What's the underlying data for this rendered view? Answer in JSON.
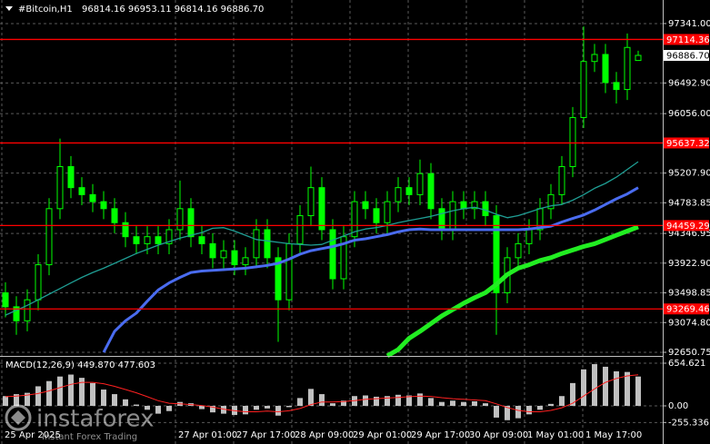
{
  "chart_data": [
    {
      "type": "candlestick",
      "title": "#Bitcoin,H1",
      "subtitle": "96814.16 96953.11 96814.16 96886.70",
      "watermark_brand": "instaforex",
      "watermark_tagline": "Instant Forex Trading",
      "color": "#00ff00",
      "grid": true,
      "xlim": [
        -0.5,
        60.25
      ],
      "ylim": [
        92599,
        97677
      ],
      "xticks": [
        {
          "value": -0.333,
          "label": "25 Apr 2025"
        },
        {
          "value": 15.583,
          "label": "27 Apr 01:00"
        },
        {
          "value": 20.917,
          "label": "27 Apr 17:00"
        },
        {
          "value": 26.25,
          "label": "28 Apr 09:00"
        },
        {
          "value": 31.583,
          "label": "29 Apr 01:00"
        },
        {
          "value": 36.917,
          "label": "29 Apr 17:00"
        },
        {
          "value": 42.25,
          "label": "30 Apr 09:00"
        },
        {
          "value": 47.583,
          "label": "1 May 01:00"
        },
        {
          "value": 52.917,
          "label": "1 May 17:00"
        }
      ],
      "yticks": [
        {
          "value": 97341,
          "label": "97341.00"
        },
        {
          "value": 96492.9,
          "label": "96492.90"
        },
        {
          "value": 96056,
          "label": "96056.00"
        },
        {
          "value": 95207.9,
          "label": "95207.90"
        },
        94783.85,
        94346.95,
        {
          "value": 93922.9,
          "label": "93922.90"
        },
        93498.85,
        {
          "value": 93074.8,
          "label": "93074.80"
        },
        92650.75
      ],
      "open": [
        93500,
        93300,
        93100,
        93400,
        93900,
        94700,
        95300,
        95000,
        94900,
        94800,
        94700,
        94500,
        94300,
        94200,
        94300,
        94200,
        94400,
        94700,
        94300,
        94200,
        94000,
        94100,
        93900,
        94000,
        94400,
        94000,
        93400,
        94200,
        94600,
        95000,
        94400,
        93700,
        94300,
        94800,
        94700,
        94500,
        94800,
        95000,
        94900,
        95200,
        94700,
        94400,
        94800,
        94700,
        94800,
        94600,
        93500,
        94000,
        94200,
        94400,
        94700,
        94900,
        95300,
        96000,
        96800,
        96900,
        96500,
        96400,
        96814.16
      ],
      "high": [
        93650,
        93450,
        93550,
        94050,
        94850,
        95700,
        95450,
        95150,
        95050,
        94950,
        94850,
        94650,
        94450,
        94450,
        94450,
        94550,
        95100,
        94850,
        94450,
        94350,
        94250,
        94250,
        94150,
        94550,
        94550,
        94150,
        94350,
        94750,
        95300,
        95150,
        94550,
        94450,
        94950,
        94950,
        94850,
        94950,
        95150,
        95150,
        95400,
        95350,
        94850,
        94950,
        94950,
        94950,
        94950,
        94750,
        94150,
        94350,
        94550,
        94850,
        95050,
        95450,
        96150,
        97300,
        97050,
        97050,
        96650,
        97200,
        96953.11
      ],
      "low": [
        93150,
        92900,
        92950,
        93250,
        93750,
        94550,
        94850,
        94750,
        94650,
        94550,
        94350,
        94150,
        94050,
        94050,
        94050,
        94050,
        94250,
        94150,
        94050,
        93850,
        93850,
        93750,
        93750,
        93850,
        93850,
        92800,
        93250,
        94050,
        94450,
        94250,
        93550,
        93550,
        94150,
        94550,
        94350,
        94350,
        94650,
        94750,
        94750,
        94550,
        94250,
        94250,
        94550,
        94550,
        94450,
        92900,
        93350,
        93850,
        94050,
        94250,
        94550,
        94750,
        95150,
        95850,
        96650,
        96350,
        96200,
        96250,
        96814.16
      ],
      "close": [
        93300,
        93100,
        93400,
        93900,
        94700,
        95300,
        95000,
        94900,
        94800,
        94700,
        94500,
        94300,
        94200,
        94300,
        94200,
        94400,
        94700,
        94300,
        94200,
        94000,
        94100,
        93900,
        94000,
        94400,
        94000,
        93400,
        94200,
        94600,
        95000,
        94400,
        93700,
        94300,
        94800,
        94700,
        94500,
        94800,
        95000,
        94900,
        95200,
        94700,
        94400,
        94800,
        94700,
        94800,
        94600,
        93500,
        94000,
        94200,
        94400,
        94700,
        94900,
        95300,
        96000,
        96800,
        96900,
        96500,
        96400,
        97000,
        96886.7
      ],
      "lines": [
        {
          "color": "#1f9e94",
          "width": 1.3,
          "values": [
            93180,
            93250,
            93320,
            93400,
            93480,
            93560,
            93640,
            93720,
            93790,
            93850,
            93920,
            93990,
            94060,
            94120,
            94180,
            94230,
            94280,
            94320,
            94360,
            94420,
            94430,
            94380,
            94320,
            94260,
            94240,
            94220,
            94200,
            94190,
            94180,
            94190,
            94250,
            94310,
            94370,
            94410,
            94430,
            94460,
            94500,
            94530,
            94560,
            94590,
            94630,
            94670,
            94700,
            94720,
            94680,
            94620,
            94570,
            94600,
            94650,
            94700,
            94740,
            94760,
            94820,
            94900,
            94990,
            95060,
            95150,
            95260,
            95370
          ]
        },
        {
          "color": "#4a6cf0",
          "width": 3,
          "values": [
            null,
            null,
            null,
            null,
            null,
            null,
            null,
            null,
            null,
            92650,
            92950,
            93100,
            93210,
            93380,
            93540,
            93640,
            93720,
            93790,
            93810,
            93820,
            93830,
            93840,
            93850,
            93870,
            93890,
            93920,
            93980,
            94050,
            94100,
            94130,
            94160,
            94200,
            94250,
            94270,
            94300,
            94330,
            94370,
            94400,
            94410,
            94400,
            94400,
            94400,
            94400,
            94400,
            94400,
            94400,
            94400,
            94400,
            94410,
            94430,
            94450,
            94510,
            94560,
            94610,
            94680,
            94760,
            94840,
            94910,
            95000
          ]
        },
        {
          "color": "#22ee22",
          "width": 5,
          "values": [
            null,
            null,
            null,
            null,
            null,
            null,
            null,
            null,
            null,
            null,
            null,
            null,
            null,
            null,
            null,
            null,
            null,
            null,
            null,
            null,
            null,
            null,
            null,
            null,
            null,
            null,
            null,
            null,
            null,
            null,
            null,
            null,
            null,
            null,
            null,
            92600,
            92690,
            92850,
            92950,
            93060,
            93170,
            93260,
            93350,
            93430,
            93500,
            93620,
            93760,
            93850,
            93900,
            93960,
            94000,
            94060,
            94110,
            94160,
            94200,
            94260,
            94320,
            94380,
            94440
          ]
        }
      ],
      "hlines": [
        {
          "value": 97114.36,
          "color": "#ff0000"
        },
        {
          "value": 95637.32,
          "color": "#ff0000"
        },
        {
          "value": 94459.29,
          "color": "#ff0000"
        },
        {
          "value": 93269.46,
          "color": "#ff0000"
        }
      ],
      "current_price": {
        "value": 96886.7,
        "label": "96886.70"
      }
    },
    {
      "type": "bar",
      "title": "MACD(12,26,9) 449.870 477.603",
      "xlim": [
        -0.5,
        60.25
      ],
      "ylim": [
        -585,
        752
      ],
      "yticks": [
        654.621,
        {
          "value": 0,
          "label": "0.00"
        },
        -255.336
      ],
      "series": [
        {
          "color": "#c0c0c0",
          "values": [
            150,
            180,
            200,
            300,
            380,
            450,
            480,
            430,
            350,
            250,
            180,
            100,
            20,
            -60,
            -120,
            -80,
            60,
            40,
            -50,
            -100,
            -120,
            -140,
            -130,
            -60,
            -40,
            -150,
            -20,
            120,
            260,
            180,
            40,
            80,
            150,
            160,
            140,
            150,
            170,
            160,
            190,
            120,
            60,
            80,
            60,
            70,
            40,
            -180,
            -220,
            -190,
            -130,
            -60,
            30,
            150,
            350,
            560,
            640,
            600,
            530,
            520,
            449.87
          ]
        },
        {
          "color": "#ff2020",
          "style": "line",
          "values": [
            140,
            150,
            165,
            190,
            230,
            280,
            330,
            360,
            360,
            340,
            300,
            250,
            200,
            140,
            80,
            40,
            30,
            20,
            5,
            -20,
            -50,
            -75,
            -90,
            -90,
            -80,
            -90,
            -75,
            -40,
            20,
            60,
            60,
            65,
            80,
            100,
            110,
            120,
            130,
            140,
            150,
            145,
            125,
            110,
            100,
            90,
            80,
            30,
            -25,
            -70,
            -90,
            -90,
            -70,
            -30,
            40,
            150,
            260,
            360,
            420,
            460,
            477.603
          ]
        }
      ]
    }
  ]
}
